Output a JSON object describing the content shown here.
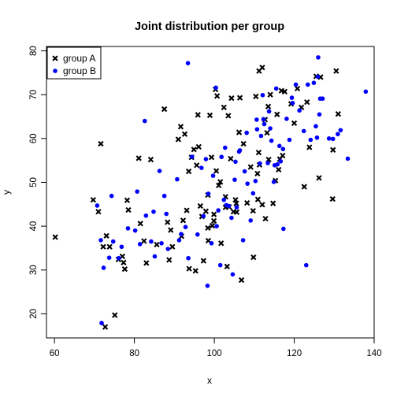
{
  "chart_data": {
    "type": "scatter",
    "title": "Joint distribution per group",
    "xlabel": "x",
    "ylabel": "y",
    "xlim": [
      58,
      140
    ],
    "ylim": [
      14.5,
      81
    ],
    "xticks": [
      60,
      80,
      100,
      120,
      140
    ],
    "yticks": [
      20,
      30,
      40,
      50,
      60,
      70,
      80
    ],
    "grid": false,
    "legend_position": "top-left",
    "series": [
      {
        "name": "group A",
        "marker": "x",
        "color": "#000000",
        "points": [
          [
            60.2,
            37.5
          ],
          [
            69.7,
            46.0
          ],
          [
            71.0,
            43.3
          ],
          [
            71.6,
            58.8
          ],
          [
            72.2,
            35.3
          ],
          [
            72.7,
            17.0
          ],
          [
            73.0,
            37.8
          ],
          [
            73.8,
            35.3
          ],
          [
            75.1,
            19.7
          ],
          [
            76.0,
            32.4
          ],
          [
            77.0,
            33.1
          ],
          [
            77.3,
            31.7
          ],
          [
            77.6,
            30.2
          ],
          [
            78.2,
            45.9
          ],
          [
            78.5,
            43.7
          ],
          [
            81.1,
            55.5
          ],
          [
            81.5,
            40.6
          ],
          [
            82.4,
            36.6
          ],
          [
            83.0,
            31.6
          ],
          [
            84.1,
            55.2
          ],
          [
            85.6,
            35.8
          ],
          [
            87.5,
            66.7
          ],
          [
            88.3,
            40.9
          ],
          [
            88.7,
            32.3
          ],
          [
            89.1,
            39.1
          ],
          [
            89.5,
            35.3
          ],
          [
            91.0,
            59.8
          ],
          [
            91.6,
            62.7
          ],
          [
            91.8,
            37.7
          ],
          [
            92.2,
            41.3
          ],
          [
            92.6,
            61.0
          ],
          [
            93.1,
            43.6
          ],
          [
            93.6,
            52.5
          ],
          [
            93.7,
            30.3
          ],
          [
            94.3,
            55.7
          ],
          [
            94.9,
            57.5
          ],
          [
            95.3,
            29.8
          ],
          [
            95.6,
            53.9
          ],
          [
            95.9,
            65.4
          ],
          [
            96.1,
            58.1
          ],
          [
            96.5,
            44.6
          ],
          [
            96.9,
            42.2
          ],
          [
            97.3,
            32.1
          ],
          [
            97.9,
            43.4
          ],
          [
            98.4,
            47.1
          ],
          [
            98.4,
            39.6
          ],
          [
            98.5,
            36.7
          ],
          [
            98.9,
            65.3
          ],
          [
            99.3,
            55.7
          ],
          [
            99.5,
            40.1
          ],
          [
            99.9,
            42.7
          ],
          [
            99.9,
            41.2
          ],
          [
            100.3,
            71.2
          ],
          [
            100.5,
            52.6
          ],
          [
            100.7,
            69.7
          ],
          [
            101.1,
            49.3
          ],
          [
            101.5,
            50.1
          ],
          [
            101.7,
            36.1
          ],
          [
            102.4,
            67.1
          ],
          [
            102.8,
            46.7
          ],
          [
            102.8,
            44.3
          ],
          [
            103.2,
            30.8
          ],
          [
            103.5,
            65.2
          ],
          [
            103.7,
            44.4
          ],
          [
            104.1,
            55.4
          ],
          [
            104.3,
            69.2
          ],
          [
            104.8,
            43.3
          ],
          [
            105.3,
            46.0
          ],
          [
            105.5,
            45.2
          ],
          [
            105.6,
            43.2
          ],
          [
            106.2,
            61.4
          ],
          [
            106.4,
            69.3
          ],
          [
            106.8,
            27.7
          ],
          [
            107.3,
            58.8
          ],
          [
            108.2,
            45.3
          ],
          [
            109.1,
            53.5
          ],
          [
            109.7,
            43.5
          ],
          [
            109.8,
            32.9
          ],
          [
            110.4,
            69.6
          ],
          [
            110.8,
            52.0
          ],
          [
            110.9,
            46.1
          ],
          [
            111.1,
            56.8
          ],
          [
            111.2,
            75.4
          ],
          [
            111.3,
            54.0
          ],
          [
            112.0,
            76.2
          ],
          [
            112.0,
            44.9
          ],
          [
            112.7,
            64.3
          ],
          [
            112.8,
            41.7
          ],
          [
            113.2,
            61.3
          ],
          [
            113.5,
            67.3
          ],
          [
            113.6,
            55.2
          ],
          [
            114.0,
            70.0
          ],
          [
            114.7,
            45.2
          ],
          [
            115.3,
            50.4
          ],
          [
            115.7,
            65.5
          ],
          [
            116.1,
            52.9
          ],
          [
            116.4,
            55.3
          ],
          [
            116.8,
            70.9
          ],
          [
            117.1,
            56.1
          ],
          [
            117.6,
            70.7
          ],
          [
            119.2,
            67.9
          ],
          [
            120.0,
            63.5
          ],
          [
            120.8,
            71.4
          ],
          [
            121.8,
            67.1
          ],
          [
            122.5,
            49.0
          ],
          [
            123.2,
            68.3
          ],
          [
            123.8,
            58.0
          ],
          [
            125.5,
            74.2
          ],
          [
            126.2,
            51.0
          ],
          [
            126.6,
            74.0
          ],
          [
            129.6,
            46.2
          ],
          [
            129.7,
            57.4
          ],
          [
            130.5,
            75.4
          ],
          [
            131.0,
            65.6
          ]
        ]
      },
      {
        "name": "group B",
        "marker": "dot",
        "color": "#0000ff",
        "points": [
          [
            70.7,
            44.7
          ],
          [
            71.6,
            36.8
          ],
          [
            71.8,
            17.9
          ],
          [
            72.3,
            30.5
          ],
          [
            73.7,
            32.8
          ],
          [
            74.3,
            46.9
          ],
          [
            74.7,
            36.5
          ],
          [
            76.1,
            32.7
          ],
          [
            76.8,
            35.3
          ],
          [
            78.4,
            39.5
          ],
          [
            80.2,
            39.0
          ],
          [
            80.7,
            47.9
          ],
          [
            81.4,
            35.9
          ],
          [
            82.6,
            64.0
          ],
          [
            82.9,
            42.4
          ],
          [
            84.2,
            36.5
          ],
          [
            84.8,
            43.3
          ],
          [
            85.1,
            33.1
          ],
          [
            86.3,
            52.6
          ],
          [
            86.8,
            36.1
          ],
          [
            87.5,
            46.9
          ],
          [
            88.0,
            42.8
          ],
          [
            88.4,
            34.8
          ],
          [
            90.7,
            50.7
          ],
          [
            91.2,
            36.8
          ],
          [
            91.7,
            38.2
          ],
          [
            92.8,
            39.8
          ],
          [
            93.4,
            77.2
          ],
          [
            93.5,
            32.7
          ],
          [
            94.4,
            55.8
          ],
          [
            95.8,
            38.1
          ],
          [
            96.8,
            53.3
          ],
          [
            97.3,
            42.3
          ],
          [
            97.9,
            55.3
          ],
          [
            98.3,
            26.4
          ],
          [
            98.5,
            47.4
          ],
          [
            99.3,
            36.1
          ],
          [
            99.7,
            51.5
          ],
          [
            100.4,
            71.6
          ],
          [
            100.6,
            40.0
          ],
          [
            101.0,
            43.6
          ],
          [
            101.5,
            31.1
          ],
          [
            101.8,
            55.8
          ],
          [
            102.4,
            46.0
          ],
          [
            102.7,
            57.9
          ],
          [
            103.0,
            44.8
          ],
          [
            103.6,
            44.6
          ],
          [
            104.3,
            41.9
          ],
          [
            104.6,
            29.0
          ],
          [
            105.1,
            50.6
          ],
          [
            105.3,
            54.7
          ],
          [
            105.6,
            44.3
          ],
          [
            106.2,
            57.0
          ],
          [
            106.4,
            57.3
          ],
          [
            107.2,
            36.8
          ],
          [
            107.6,
            52.5
          ],
          [
            108.1,
            61.3
          ],
          [
            108.3,
            49.7
          ],
          [
            109.1,
            41.3
          ],
          [
            109.7,
            47.5
          ],
          [
            110.3,
            50.3
          ],
          [
            110.6,
            64.3
          ],
          [
            110.7,
            62.1
          ],
          [
            111.4,
            54.3
          ],
          [
            111.7,
            60.6
          ],
          [
            112.1,
            69.9
          ],
          [
            112.3,
            64.4
          ],
          [
            112.5,
            63.3
          ],
          [
            113.4,
            54.4
          ],
          [
            113.7,
            66.2
          ],
          [
            114.0,
            62.3
          ],
          [
            114.3,
            59.5
          ],
          [
            114.9,
            50.1
          ],
          [
            115.1,
            53.9
          ],
          [
            115.5,
            71.4
          ],
          [
            115.8,
            54.1
          ],
          [
            116.3,
            58.3
          ],
          [
            116.6,
            54.8
          ],
          [
            117.2,
            57.6
          ],
          [
            117.3,
            39.4
          ],
          [
            118.1,
            64.5
          ],
          [
            118.8,
            59.7
          ],
          [
            119.4,
            69.3
          ],
          [
            119.6,
            68.1
          ],
          [
            120.4,
            72.3
          ],
          [
            121.3,
            66.4
          ],
          [
            122.4,
            61.7
          ],
          [
            123.0,
            31.1
          ],
          [
            123.4,
            72.3
          ],
          [
            124.1,
            59.7
          ],
          [
            124.9,
            72.7
          ],
          [
            125.4,
            62.8
          ],
          [
            125.7,
            60.2
          ],
          [
            125.9,
            74.1
          ],
          [
            126.0,
            78.5
          ],
          [
            126.3,
            65.5
          ],
          [
            126.5,
            69.1
          ],
          [
            127.1,
            69.1
          ],
          [
            128.7,
            60.0
          ],
          [
            129.7,
            59.9
          ],
          [
            130.9,
            61.0
          ],
          [
            131.6,
            61.9
          ],
          [
            133.4,
            55.4
          ],
          [
            137.9,
            70.7
          ]
        ]
      }
    ]
  }
}
